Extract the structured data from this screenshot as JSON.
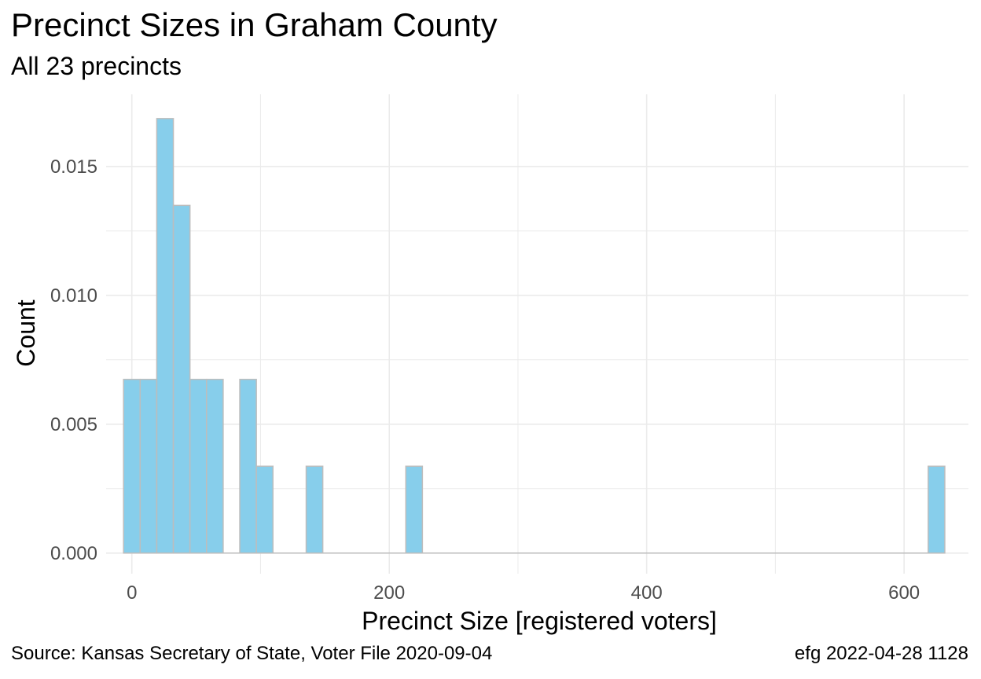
{
  "chart_data": {
    "type": "bar",
    "title": "Precinct Sizes in Graham County",
    "subtitle": "All 23 precincts",
    "xlabel": "Precinct Size [registered voters]",
    "ylabel": "Count",
    "caption_left": "Source:  Kansas Secretary of State, Voter File  2020-09-04",
    "caption_right": "efg 2022-04-28 1128",
    "xlim": [
      -20,
      650
    ],
    "ylim": [
      -0.0008,
      0.0178
    ],
    "x_ticks": [
      0,
      200,
      400,
      600
    ],
    "x_tick_labels": [
      "0",
      "200",
      "400",
      "600"
    ],
    "y_ticks": [
      0.0,
      0.005,
      0.01,
      0.015
    ],
    "y_tick_labels": [
      "0.000",
      "0.005",
      "0.010",
      "0.015"
    ],
    "bin_width": 12.9,
    "bins": [
      {
        "x": 0,
        "value": 0.00674
      },
      {
        "x": 12.9,
        "value": 0.00674
      },
      {
        "x": 25.8,
        "value": 0.01686
      },
      {
        "x": 38.7,
        "value": 0.01349
      },
      {
        "x": 51.6,
        "value": 0.00674
      },
      {
        "x": 64.5,
        "value": 0.00674
      },
      {
        "x": 90.3,
        "value": 0.00674
      },
      {
        "x": 103.2,
        "value": 0.00337
      },
      {
        "x": 141.9,
        "value": 0.00337
      },
      {
        "x": 219.3,
        "value": 0.00337
      },
      {
        "x": 625.2,
        "value": 0.00337
      }
    ],
    "grid": true,
    "colors": {
      "fill": "#87CEEB",
      "outline": "#bdbdbd",
      "grid": "#ebebeb"
    }
  }
}
